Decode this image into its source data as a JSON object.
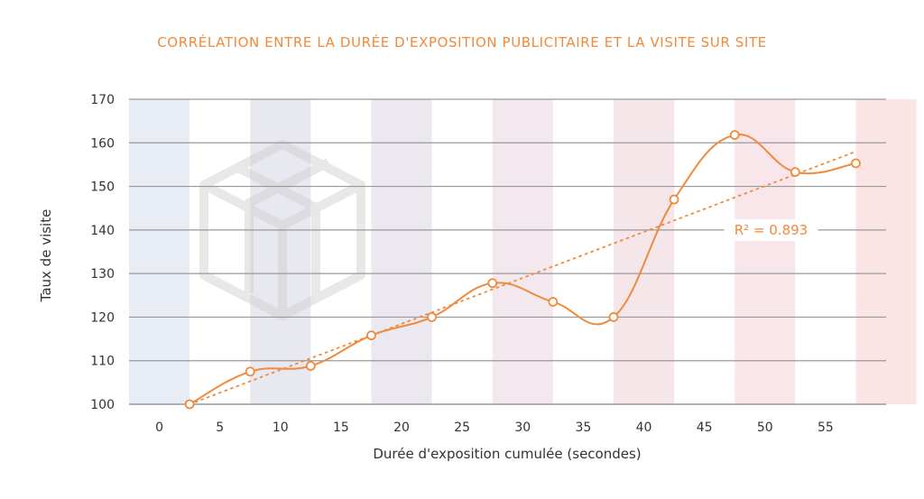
{
  "chart_data": {
    "type": "line",
    "title": "CORRÉLATION ENTRE LA DURÉE D'EXPOSITION PUBLICITAIRE ET LA VISITE SUR SITE",
    "xlabel": "Durée d'exposition cumulée (secondes)",
    "ylabel": "Taux de visite",
    "x_ticks": [
      0,
      5,
      10,
      15,
      20,
      25,
      30,
      35,
      40,
      45,
      50,
      55
    ],
    "y_ticks": [
      100,
      110,
      120,
      130,
      140,
      150,
      160,
      170
    ],
    "xlim": [
      -2.5,
      60
    ],
    "ylim": [
      100,
      170
    ],
    "grid": "horizontal",
    "band_colors": [
      "#e8ecf4",
      "#e8e8f0",
      "#ece8f0",
      "#f2e8ee",
      "#f5e6ea",
      "#f8e6ea",
      "#fbe4e4"
    ],
    "series": [
      {
        "x": [
          2.5,
          7.5,
          12.5,
          17.5,
          22.5,
          27.5,
          32.5,
          37.5,
          42.5,
          47.5,
          52.5,
          57.5
        ],
        "y": [
          100,
          107.5,
          108.8,
          115.8,
          120,
          127.8,
          123.5,
          120,
          147,
          161.8,
          153.3,
          155.3
        ]
      }
    ],
    "trendline": {
      "x": [
        2.5,
        57.5
      ],
      "y": [
        100,
        158
      ],
      "style": "dotted"
    },
    "annotation": {
      "text": "R² = 0.893",
      "x": 50.5,
      "y": 140
    },
    "colors": {
      "line": "#f08a3c",
      "grid": "#999999",
      "text": "#333333"
    }
  }
}
